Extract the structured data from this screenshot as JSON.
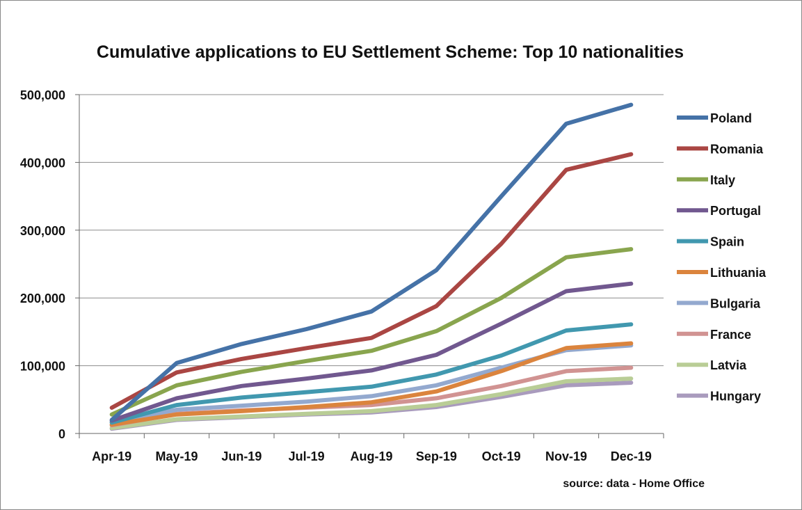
{
  "chart_data": {
    "type": "line",
    "title": "Cumulative applications to EU Settlement Scheme: Top 10 nationalities",
    "xlabel": "",
    "ylabel": "",
    "ylim": [
      0,
      500000
    ],
    "yticks": [
      0,
      100000,
      200000,
      300000,
      400000,
      500000
    ],
    "ytick_labels": [
      "0",
      "100,000",
      "200,000",
      "300,000",
      "400,000",
      "500,000"
    ],
    "grid": true,
    "legend_position": "right",
    "categories": [
      "Apr-19",
      "May-19",
      "Jun-19",
      "Jul-19",
      "Aug-19",
      "Sep-19",
      "Oct-19",
      "Nov-19",
      "Dec-19"
    ],
    "series": [
      {
        "name": "Poland",
        "color": "#4572a7",
        "values": [
          20000,
          104000,
          132000,
          154000,
          180000,
          241000,
          350000,
          457000,
          485000
        ]
      },
      {
        "name": "Romania",
        "color": "#aa4643",
        "values": [
          38000,
          90000,
          110000,
          126000,
          141000,
          188000,
          280000,
          389000,
          412000
        ]
      },
      {
        "name": "Italy",
        "color": "#89a54e",
        "values": [
          28000,
          71000,
          91000,
          107000,
          122000,
          151000,
          200000,
          260000,
          272000
        ]
      },
      {
        "name": "Portugal",
        "color": "#71588f",
        "values": [
          19000,
          52000,
          70000,
          81000,
          93000,
          116000,
          162000,
          210000,
          221000
        ]
      },
      {
        "name": "Spain",
        "color": "#4198af",
        "values": [
          16000,
          42000,
          53000,
          61000,
          69000,
          87000,
          115000,
          152000,
          161000
        ]
      },
      {
        "name": "Lithuania",
        "color": "#db843d",
        "values": [
          13000,
          28000,
          33000,
          39000,
          46000,
          62000,
          92000,
          126000,
          133000
        ]
      },
      {
        "name": "Bulgaria",
        "color": "#93a9cf",
        "values": [
          17000,
          35000,
          41000,
          47000,
          55000,
          71000,
          97000,
          123000,
          130000
        ]
      },
      {
        "name": "France",
        "color": "#d19392",
        "values": [
          12000,
          29000,
          34000,
          38000,
          42000,
          52000,
          70000,
          92000,
          97000
        ]
      },
      {
        "name": "Latvia",
        "color": "#b9cd96",
        "values": [
          8000,
          21000,
          25000,
          29000,
          33000,
          42000,
          58000,
          77000,
          81000
        ]
      },
      {
        "name": "Hungary",
        "color": "#a99bbd",
        "values": [
          7000,
          20000,
          24000,
          28000,
          31000,
          39000,
          54000,
          71000,
          75000
        ]
      }
    ],
    "annotation": "source: data - Home Office"
  }
}
